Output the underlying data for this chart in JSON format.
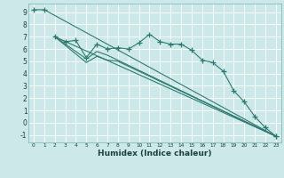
{
  "xlabel": "Humidex (Indice chaleur)",
  "bg_color": "#cce8e8",
  "grid_color": "#ffffff",
  "line_color": "#2d7b70",
  "xlim": [
    -0.5,
    23.5
  ],
  "ylim": [
    -1.6,
    9.7
  ],
  "xtick_vals": [
    0,
    1,
    2,
    3,
    4,
    5,
    6,
    7,
    8,
    9,
    10,
    11,
    12,
    13,
    14,
    15,
    16,
    17,
    18,
    19,
    20,
    21,
    22,
    23
  ],
  "ytick_vals": [
    -1,
    0,
    1,
    2,
    3,
    4,
    5,
    6,
    7,
    8,
    9
  ],
  "series": [
    {
      "x": [
        0,
        1,
        23
      ],
      "y": [
        9.2,
        9.2,
        -1.1
      ],
      "marker": true,
      "straight": true
    },
    {
      "x": [
        2,
        3,
        4,
        5,
        6,
        7,
        8,
        9,
        10,
        11,
        12,
        13,
        14,
        15,
        16,
        17,
        18,
        19,
        20,
        21,
        22,
        23
      ],
      "y": [
        7.0,
        6.6,
        6.7,
        5.3,
        6.4,
        6.0,
        6.1,
        6.0,
        6.5,
        7.2,
        6.6,
        6.4,
        6.4,
        5.9,
        5.1,
        4.9,
        4.2,
        2.6,
        1.7,
        0.5,
        -0.4,
        -1.1
      ],
      "marker": true,
      "straight": false
    },
    {
      "x": [
        2,
        23
      ],
      "y": [
        7.0,
        -1.1
      ],
      "marker": false,
      "straight": true
    },
    {
      "x": [
        2,
        5,
        6,
        7,
        23
      ],
      "y": [
        7.0,
        5.2,
        5.8,
        5.5,
        -1.1
      ],
      "marker": false,
      "straight": true
    },
    {
      "x": [
        2,
        5,
        6,
        7,
        8,
        23
      ],
      "y": [
        7.0,
        4.9,
        5.4,
        5.1,
        5.0,
        -1.1
      ],
      "marker": false,
      "straight": true
    }
  ]
}
